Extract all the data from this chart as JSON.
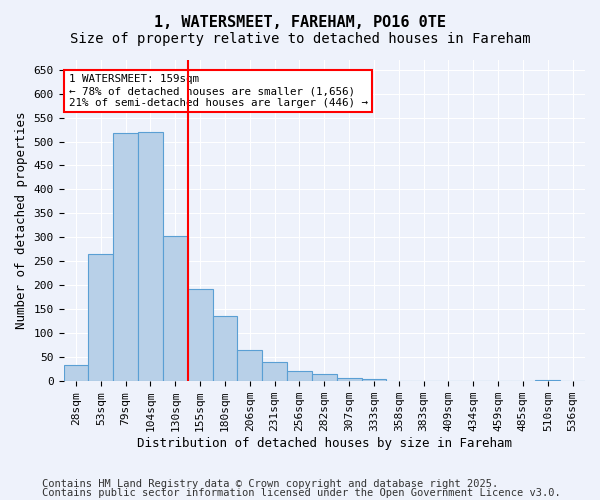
{
  "title": "1, WATERSMEET, FAREHAM, PO16 0TE",
  "subtitle": "Size of property relative to detached houses in Fareham",
  "xlabel": "Distribution of detached houses by size in Fareham",
  "ylabel": "Number of detached properties",
  "bins": [
    "28sqm",
    "53sqm",
    "79sqm",
    "104sqm",
    "130sqm",
    "155sqm",
    "180sqm",
    "206sqm",
    "231sqm",
    "256sqm",
    "282sqm",
    "307sqm",
    "333sqm",
    "358sqm",
    "383sqm",
    "409sqm",
    "434sqm",
    "459sqm",
    "485sqm",
    "510sqm",
    "536sqm"
  ],
  "counts": [
    33,
    265,
    518,
    519,
    302,
    192,
    135,
    66,
    40,
    22,
    15,
    6,
    4,
    0,
    0,
    1,
    0,
    0,
    0,
    3,
    0
  ],
  "bar_color": "#b8d0e8",
  "bar_edge_color": "#5a9fd4",
  "vline_color": "red",
  "annotation_text": "1 WATERSMEET: 159sqm\n← 78% of detached houses are smaller (1,656)\n21% of semi-detached houses are larger (446) →",
  "annotation_box_color": "white",
  "annotation_box_edge": "red",
  "ylim": [
    0,
    670
  ],
  "yticks": [
    0,
    50,
    100,
    150,
    200,
    250,
    300,
    350,
    400,
    450,
    500,
    550,
    600,
    650
  ],
  "footer1": "Contains HM Land Registry data © Crown copyright and database right 2025.",
  "footer2": "Contains public sector information licensed under the Open Government Licence v3.0.",
  "bg_color": "#eef2fb",
  "grid_color": "white",
  "title_fontsize": 11,
  "subtitle_fontsize": 10,
  "label_fontsize": 9,
  "tick_fontsize": 8,
  "footer_fontsize": 7.5,
  "vline_pos": 4.5
}
